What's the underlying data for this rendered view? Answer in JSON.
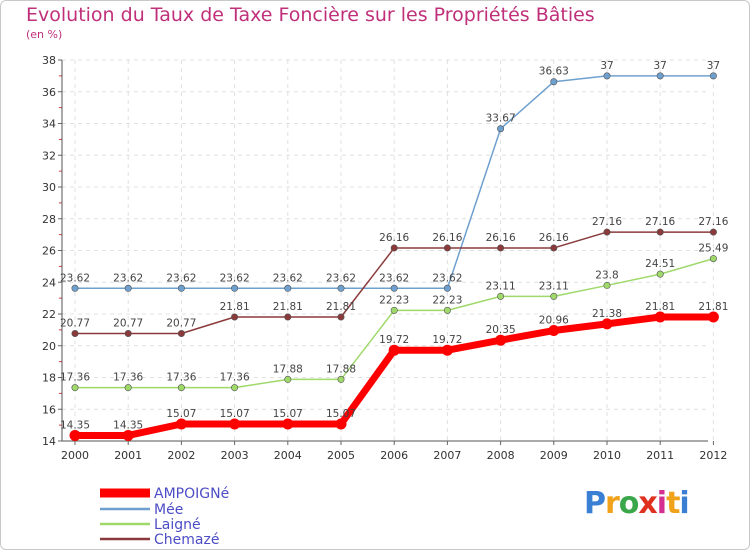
{
  "chart_data": {
    "type": "line",
    "title": "Evolution du Taux de Taxe Foncière sur les Propriétés Bâties",
    "ylabel": "(en %)",
    "xlabel": "",
    "ylim": [
      14,
      38
    ],
    "yticks": [
      14,
      16,
      18,
      20,
      22,
      24,
      26,
      28,
      30,
      32,
      34,
      36,
      38
    ],
    "categories": [
      "2000",
      "2001",
      "2002",
      "2003",
      "2004",
      "2005",
      "2006",
      "2007",
      "2008",
      "2009",
      "2010",
      "2011",
      "2012"
    ],
    "series": [
      {
        "name": "Mée",
        "color": "#6ea0cf",
        "width": 1.5,
        "values": [
          23.62,
          23.62,
          23.62,
          23.62,
          23.62,
          23.62,
          23.62,
          23.62,
          33.67,
          36.63,
          37,
          37,
          37
        ],
        "labels": [
          "23.62",
          "23.62",
          "23.62",
          "23.62",
          "23.62",
          "23.62",
          "23.62",
          "23.62",
          "33.67",
          "36.63",
          "37",
          "37",
          "37"
        ]
      },
      {
        "name": "Chemazé",
        "color": "#8a3a3a",
        "width": 1.5,
        "values": [
          20.77,
          20.77,
          20.77,
          21.81,
          21.81,
          21.81,
          26.16,
          26.16,
          26.16,
          26.16,
          27.16,
          27.16,
          27.16
        ],
        "labels": [
          "20.77",
          "20.77",
          "20.77",
          "21.81",
          "21.81",
          "21.81",
          "26.16",
          "26.16",
          "26.16",
          "26.16",
          "27.16",
          "27.16",
          "27.16"
        ]
      },
      {
        "name": "Laigné",
        "color": "#9fd96a",
        "width": 1.5,
        "values": [
          17.36,
          17.36,
          17.36,
          17.36,
          17.88,
          17.88,
          22.23,
          22.23,
          23.11,
          23.11,
          23.8,
          24.51,
          25.49
        ],
        "labels": [
          "17.36",
          "17.36",
          "17.36",
          "17.36",
          "17.88",
          "17.88",
          "22.23",
          "22.23",
          "23.11",
          "23.11",
          "23.8",
          "24.51",
          "25.49"
        ]
      },
      {
        "name": "AMPOIGNé",
        "color": "#ff0000",
        "width": 7,
        "values": [
          14.35,
          14.35,
          15.07,
          15.07,
          15.07,
          15.07,
          19.72,
          19.72,
          20.35,
          20.96,
          21.38,
          21.81,
          21.81
        ],
        "labels": [
          "14.35",
          "14.35",
          "15.07",
          "15.07",
          "15.07",
          "15.07",
          "19.72",
          "19.72",
          "20.35",
          "20.96",
          "21.38",
          "21.81",
          "21.81"
        ]
      }
    ],
    "legend": [
      "AMPOIGNé",
      "Mée",
      "Laigné",
      "Chemazé"
    ],
    "legend_colors": [
      "#ff0000",
      "#6ea0cf",
      "#9fd96a",
      "#8a3a3a"
    ]
  },
  "logo": {
    "text": "Proxiti",
    "colors": [
      "#3a7fd4",
      "#f0a21a",
      "#3aa84a",
      "#e0301e",
      "#d42e8e",
      "#f0a21a",
      "#3a7fd4"
    ]
  }
}
